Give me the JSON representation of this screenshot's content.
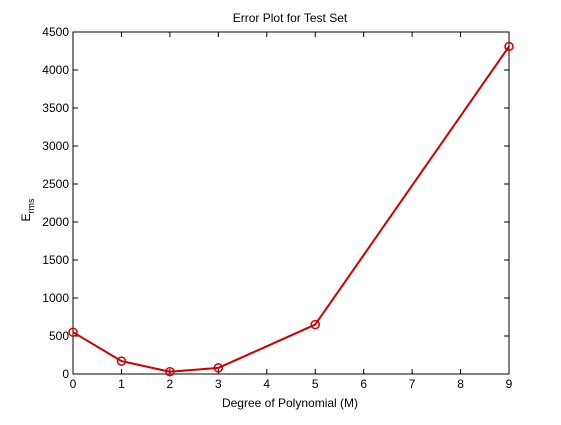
{
  "chart_data": {
    "type": "line",
    "title": "Error Plot for Test Set",
    "xlabel": "Degree of Polynomial (M)",
    "ylabel_main": "E",
    "ylabel_sub": "rms",
    "xlim": [
      0,
      9
    ],
    "ylim": [
      0,
      4500
    ],
    "xticks": [
      0,
      1,
      2,
      3,
      4,
      5,
      6,
      7,
      8,
      9
    ],
    "yticks": [
      0,
      500,
      1000,
      1500,
      2000,
      2500,
      3000,
      3500,
      4000,
      4500
    ],
    "grid": false,
    "legend": false,
    "series": [
      {
        "color": "#cc0000",
        "marker": "circle",
        "x": [
          0,
          1,
          2,
          3,
          5,
          9
        ],
        "y": [
          550,
          170,
          30,
          80,
          650,
          4310
        ]
      }
    ]
  }
}
